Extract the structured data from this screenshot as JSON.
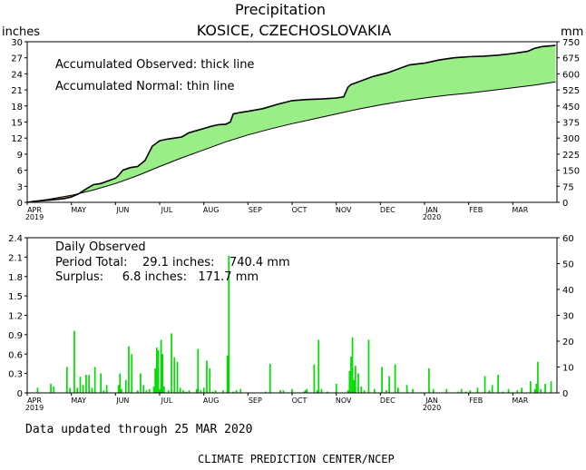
{
  "title": "Precipitation",
  "subtitle": "KOSICE, CZECHOSLOVAKIA",
  "footer": {
    "updated": "Data updated through 25 MAR 2020",
    "credit": "CLIMATE PREDICTION CENTER/NCEP"
  },
  "colors": {
    "surplus": "#99ee88",
    "deficit": "#b08070",
    "bars": "#00dd00",
    "line": "#000000"
  },
  "chart_data": [
    {
      "type": "area",
      "title": "Precipitation",
      "subtitle": "KOSICE, CZECHOSLOVAKIA",
      "ylabel_left": "inches",
      "ylabel_right": "mm",
      "ylim": [
        0,
        30
      ],
      "yticks_left": [
        "0",
        "3",
        "6",
        "9",
        "12",
        "15",
        "18",
        "21",
        "24",
        "27",
        "30"
      ],
      "yticks_right": [
        "0",
        "75",
        "150",
        "225",
        "300",
        "375",
        "450",
        "525",
        "600",
        "675",
        "750"
      ],
      "month_labels": [
        "APR",
        "MAY",
        "JUN",
        "JUL",
        "AUG",
        "SEP",
        "OCT",
        "NOV",
        "DEC",
        "JAN",
        "FEB",
        "MAR"
      ],
      "year_labels": [
        {
          "month_index": 0,
          "text": "2019"
        },
        {
          "month_index": 9,
          "text": "2020"
        }
      ],
      "annotations": [
        "Accumulated Observed: thick line",
        "Accumulated Normal: thin line"
      ],
      "x_unit": "days since 1 APR 2019",
      "series": [
        {
          "name": "Accumulated Observed",
          "x": [
            0,
            5,
            15,
            25,
            30,
            35,
            40,
            45,
            50,
            55,
            60,
            62,
            65,
            70,
            75,
            80,
            85,
            90,
            95,
            100,
            105,
            110,
            120,
            125,
            130,
            135,
            138,
            140,
            145,
            150,
            160,
            170,
            180,
            190,
            200,
            210,
            215,
            218,
            220,
            225,
            235,
            245,
            255,
            260,
            270,
            280,
            290,
            300,
            310,
            320,
            330,
            340,
            345,
            350,
            359
          ],
          "values": [
            0,
            0.2,
            0.4,
            0.7,
            1.0,
            1.6,
            2.5,
            3.3,
            3.5,
            4.0,
            4.5,
            5.0,
            6.0,
            6.5,
            6.7,
            7.8,
            10.5,
            11.5,
            11.8,
            12.0,
            12.2,
            13.0,
            13.8,
            14.2,
            14.5,
            14.6,
            15.0,
            16.5,
            16.8,
            17.0,
            17.5,
            18.3,
            19.0,
            19.2,
            19.3,
            19.5,
            19.7,
            21.5,
            22.0,
            22.5,
            23.5,
            24.2,
            25.2,
            25.7,
            26.0,
            26.6,
            27.0,
            27.2,
            27.3,
            27.5,
            27.8,
            28.2,
            28.8,
            29.1,
            29.3
          ]
        },
        {
          "name": "Accumulated Normal",
          "x": [
            0,
            15,
            30,
            45,
            60,
            75,
            90,
            105,
            120,
            135,
            150,
            165,
            180,
            195,
            210,
            225,
            240,
            255,
            270,
            285,
            300,
            315,
            330,
            345,
            359
          ],
          "values": [
            0,
            0.6,
            1.3,
            2.3,
            3.5,
            5.0,
            6.7,
            8.3,
            9.8,
            11.3,
            12.6,
            13.7,
            14.7,
            15.6,
            16.5,
            17.4,
            18.2,
            18.9,
            19.5,
            20.0,
            20.4,
            20.9,
            21.4,
            21.9,
            22.5
          ]
        }
      ]
    },
    {
      "type": "bar",
      "title": "Daily Observed",
      "ylabel_left": "inches",
      "ylabel_right": "mm",
      "ylim": [
        0,
        2.4
      ],
      "yticks_left": [
        "0",
        "0.3",
        "0.6",
        "0.9",
        "1.2",
        "1.5",
        "1.8",
        "2.1",
        "2.4"
      ],
      "yticks_right": [
        "0",
        "10",
        "20",
        "30",
        "40",
        "50",
        "60"
      ],
      "month_labels": [
        "APR",
        "MAY",
        "JUN",
        "JUL",
        "AUG",
        "SEP",
        "OCT",
        "NOV",
        "DEC",
        "JAN",
        "FEB",
        "MAR"
      ],
      "year_labels": [
        {
          "month_index": 0,
          "text": "2019"
        },
        {
          "month_index": 9,
          "text": "2020"
        }
      ],
      "annotations": {
        "header": "Daily Observed",
        "period_total": "Period Total:    29.1 inches:    740.4 mm",
        "surplus": "Surplus:     6.8 inches:   171.7 mm"
      },
      "x_unit": "days since 1 APR 2019",
      "series": [
        {
          "name": "Daily Observed",
          "x": [
            7,
            16,
            18,
            27,
            29,
            32,
            34,
            36,
            38,
            40,
            42,
            44,
            46,
            50,
            52,
            54,
            62,
            63,
            64,
            67,
            69,
            71,
            75,
            77,
            79,
            81,
            83,
            86,
            87,
            88,
            89,
            90,
            91,
            92,
            93,
            96,
            98,
            100,
            102,
            104,
            106,
            108,
            110,
            115,
            116,
            118,
            120,
            122,
            124,
            126,
            128,
            133,
            136,
            137,
            140,
            142,
            145,
            162,
            165,
            172,
            174,
            180,
            188,
            189,
            190,
            195,
            197,
            198,
            200,
            204,
            210,
            218,
            219,
            220,
            221,
            222,
            223,
            225,
            227,
            229,
            232,
            236,
            241,
            244,
            246,
            250,
            252,
            258,
            262,
            273,
            276,
            285,
            293,
            295,
            298,
            301,
            306,
            311,
            314,
            316,
            320,
            323,
            327,
            333,
            336,
            342,
            345,
            346,
            347,
            349,
            352,
            356
          ],
          "values": [
            0.08,
            0.14,
            0.1,
            0.4,
            0.08,
            0.96,
            0.08,
            0.25,
            0.12,
            0.28,
            0.28,
            0.08,
            0.4,
            0.3,
            0.04,
            0.12,
            0.12,
            0.3,
            0.06,
            0.2,
            0.72,
            0.6,
            0.04,
            0.3,
            0.12,
            0.04,
            0.06,
            0.1,
            0.38,
            0.7,
            0.66,
            0.06,
            0.82,
            0.6,
            0.1,
            0.04,
            0.92,
            0.55,
            0.48,
            0.08,
            0.04,
            0.02,
            0.04,
            0.06,
            0.68,
            0.04,
            0.08,
            0.5,
            0.38,
            0.02,
            0.04,
            0.04,
            0.58,
            2.12,
            0.02,
            0.04,
            0.06,
            0.02,
            0.45,
            0.04,
            0.04,
            0.06,
            0.02,
            0.04,
            0.06,
            0.44,
            0.04,
            0.82,
            0.06,
            0.02,
            0.14,
            0.04,
            0.34,
            0.56,
            0.86,
            0.2,
            0.42,
            0.3,
            0.1,
            0.04,
            0.82,
            0.06,
            0.4,
            0.04,
            0.26,
            0.44,
            0.08,
            0.12,
            0.06,
            0.38,
            0.06,
            0.06,
            0.02,
            0.06,
            0.02,
            0.04,
            0.08,
            0.26,
            0.04,
            0.12,
            0.28,
            0.02,
            0.06,
            0.04,
            0.08,
            0.18,
            0.06,
            0.14,
            0.48,
            0.06,
            0.14,
            0.18
          ]
        }
      ]
    }
  ]
}
